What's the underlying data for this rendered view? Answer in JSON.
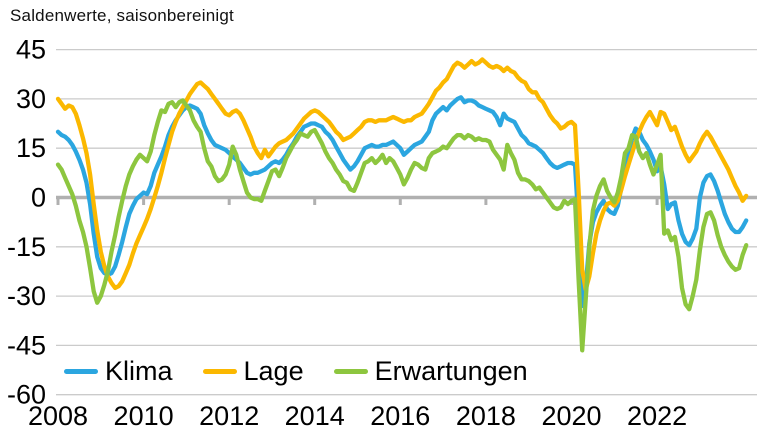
{
  "title": "Saldenwerte, saisonbereinigt",
  "chart_data": {
    "type": "line",
    "frequency": "monthly",
    "x_start": "2008-01",
    "x_end": "2024-02",
    "x_tick_labels": [
      "2008",
      "2010",
      "2012",
      "2014",
      "2016",
      "2018",
      "2020",
      "2022"
    ],
    "y_ticks": [
      45,
      30,
      15,
      0,
      -15,
      -30,
      -45,
      -60
    ],
    "ylim": [
      -60,
      45
    ],
    "grid": true,
    "legend_position": "bottom-left-inside",
    "colors": {
      "gridline": "#CBCBCB",
      "zero_line": "#B0B0B0",
      "text": "#000000",
      "background": "#FFFFFF"
    },
    "series": [
      {
        "name": "Klima",
        "color": "#2BA6E0",
        "values": [
          20,
          19,
          18.5,
          17.5,
          16,
          14,
          11.5,
          8.5,
          4.5,
          -2,
          -11,
          -18,
          -21.5,
          -23,
          -23.5,
          -23,
          -21,
          -17.5,
          -13.5,
          -9,
          -5,
          -2.5,
          -0.5,
          0.5,
          1.5,
          1,
          3.5,
          7.5,
          10,
          12.5,
          15.5,
          19,
          21.5,
          23.5,
          25,
          26.5,
          27.5,
          28,
          27.5,
          27,
          25.5,
          22,
          19.5,
          17.5,
          16,
          15.5,
          15,
          14.5,
          13.5,
          12.5,
          11.5,
          10.5,
          9,
          7.5,
          7,
          7.5,
          7.5,
          8,
          8.5,
          9.5,
          10.5,
          11,
          10.5,
          11.5,
          13,
          15,
          16.5,
          18.5,
          20,
          21.5,
          22,
          22.5,
          22.5,
          22,
          21.5,
          20,
          19,
          17.5,
          15.5,
          13.5,
          11.5,
          10,
          8.5,
          9.5,
          11,
          13,
          15,
          15.5,
          16,
          15.5,
          15.5,
          16,
          16,
          16.5,
          17,
          16,
          15,
          13,
          14,
          15,
          16,
          16.5,
          17,
          18.5,
          20,
          23.5,
          25.5,
          26.5,
          27.5,
          26.5,
          28,
          29,
          30,
          30.5,
          29,
          29.5,
          29.5,
          29,
          28,
          27.5,
          27,
          26.5,
          26,
          24.5,
          22,
          25.5,
          24,
          23.5,
          23,
          21,
          19,
          18,
          16.5,
          16,
          15.5,
          14.5,
          13.5,
          12,
          10.5,
          9.5,
          9,
          9.5,
          10,
          10.5,
          10.5,
          10,
          -8,
          -33,
          -27,
          -14,
          -7.5,
          -4.5,
          -2.5,
          -1,
          -3.5,
          -4.5,
          -5,
          -2.5,
          3,
          8.5,
          13,
          18,
          21,
          20,
          17.5,
          16,
          14,
          11.5,
          8,
          9.5,
          4,
          -3.5,
          -2,
          -1.5,
          -7,
          -11,
          -13.5,
          -14.5,
          -12.5,
          -9.5,
          0,
          4.5,
          6.5,
          7,
          5,
          2,
          -1.5,
          -5,
          -7.5,
          -9.5,
          -10.5,
          -10.5,
          -9,
          -7
        ]
      },
      {
        "name": "Lage",
        "color": "#FBB800",
        "values": [
          30,
          28.5,
          27,
          28,
          27.5,
          25.5,
          22,
          18,
          13.5,
          7,
          -2,
          -10,
          -16.5,
          -21,
          -24,
          -26,
          -27.5,
          -27,
          -25.5,
          -23,
          -20.5,
          -17,
          -14,
          -11.5,
          -9,
          -6.5,
          -3.5,
          0,
          3.5,
          7.5,
          12,
          16,
          20,
          23,
          25.5,
          27.5,
          29.5,
          31.5,
          33,
          34.5,
          35,
          34,
          33,
          31.5,
          30,
          28.5,
          27,
          25.5,
          25,
          26,
          26.5,
          25.5,
          23.5,
          21,
          18.5,
          15.5,
          13.5,
          12,
          14.5,
          12.5,
          14,
          15.5,
          16.5,
          17,
          17.5,
          18.5,
          19.5,
          21,
          22.5,
          24,
          25,
          26,
          26.5,
          26,
          25,
          24,
          23,
          21.5,
          20,
          19,
          17.5,
          18,
          18.5,
          19.5,
          20.5,
          21.5,
          23,
          23.5,
          23.5,
          23,
          23.5,
          23.5,
          23.5,
          24,
          24.5,
          24,
          23.5,
          23,
          23.5,
          23.5,
          24.5,
          25,
          25.5,
          27,
          28.5,
          30.5,
          32.5,
          33.5,
          35,
          36,
          38,
          40,
          41,
          40.5,
          39.5,
          40.5,
          41.5,
          40.5,
          41,
          42,
          41,
          40,
          39.5,
          40,
          39.5,
          38.5,
          39.5,
          38.5,
          38,
          36.5,
          35.5,
          35,
          33,
          32,
          32,
          30,
          29,
          27,
          25,
          23.5,
          22.5,
          21,
          21.5,
          22.5,
          23,
          22,
          2,
          -22,
          -28,
          -24,
          -17,
          -11,
          -7,
          -4,
          -2,
          -1.5,
          -2.5,
          -1,
          2.5,
          6.5,
          10,
          13.5,
          17,
          20,
          22.5,
          24.5,
          26,
          24,
          22,
          26,
          25.5,
          23,
          20.5,
          21.5,
          18.5,
          15.5,
          13,
          11,
          12.5,
          14,
          16.5,
          18.5,
          20,
          18.5,
          16.5,
          14.5,
          12.5,
          10.5,
          8.5,
          6,
          3.5,
          1.5,
          -1,
          0.5
        ]
      },
      {
        "name": "Erwartungen",
        "color": "#8DC63F",
        "values": [
          10,
          8.5,
          6,
          3.5,
          1,
          -2.5,
          -7,
          -10.5,
          -15,
          -21.5,
          -28.5,
          -32,
          -30,
          -26.5,
          -22.5,
          -16.5,
          -11.5,
          -6,
          -1,
          3.5,
          7,
          9.5,
          11.5,
          13,
          12,
          11,
          14,
          19,
          23,
          26.5,
          26,
          28.5,
          29,
          27.5,
          29,
          29.5,
          28,
          26.5,
          23.5,
          21.5,
          20,
          15,
          11,
          9.5,
          6.5,
          5,
          5.5,
          7,
          10,
          15.5,
          13,
          8.5,
          5,
          1.5,
          0,
          -0.5,
          -0.5,
          -1,
          2,
          5,
          8,
          8.5,
          6.5,
          9,
          12,
          14,
          16,
          17.5,
          19.5,
          19,
          18.5,
          20,
          20.5,
          18.5,
          16.5,
          14,
          12,
          10.5,
          8.5,
          7,
          5,
          4.5,
          2.5,
          2,
          4.5,
          7.5,
          10.5,
          11,
          12,
          10.5,
          11.5,
          13,
          10.5,
          12,
          11,
          9,
          7,
          4,
          6,
          8.5,
          10.5,
          10,
          9,
          8.5,
          12,
          13.5,
          14,
          14.5,
          15.5,
          15,
          16.5,
          18,
          19,
          19,
          18,
          19,
          18.5,
          17.5,
          18,
          17.5,
          17.5,
          17,
          14.5,
          13,
          11.5,
          8.5,
          16,
          13.5,
          11.5,
          7.5,
          5.5,
          5.5,
          5,
          4,
          2.5,
          3,
          1.5,
          0,
          -1.5,
          -3,
          -3.5,
          -3,
          -1,
          -2,
          -1,
          -0.5,
          -25,
          -46.5,
          -31,
          -15,
          -4,
          0.5,
          3.5,
          5.5,
          2,
          0,
          -1.5,
          1.5,
          6.5,
          13.5,
          15,
          19,
          18.5,
          14,
          12,
          13.5,
          10,
          7,
          10,
          13,
          -11,
          -10,
          -13,
          -12,
          -18,
          -27.5,
          -32.5,
          -34,
          -30,
          -25,
          -16,
          -9,
          -5,
          -4.5,
          -7,
          -11.5,
          -15,
          -17.5,
          -19.5,
          -21,
          -22,
          -21.5,
          -17.5,
          -14.5
        ]
      }
    ]
  }
}
